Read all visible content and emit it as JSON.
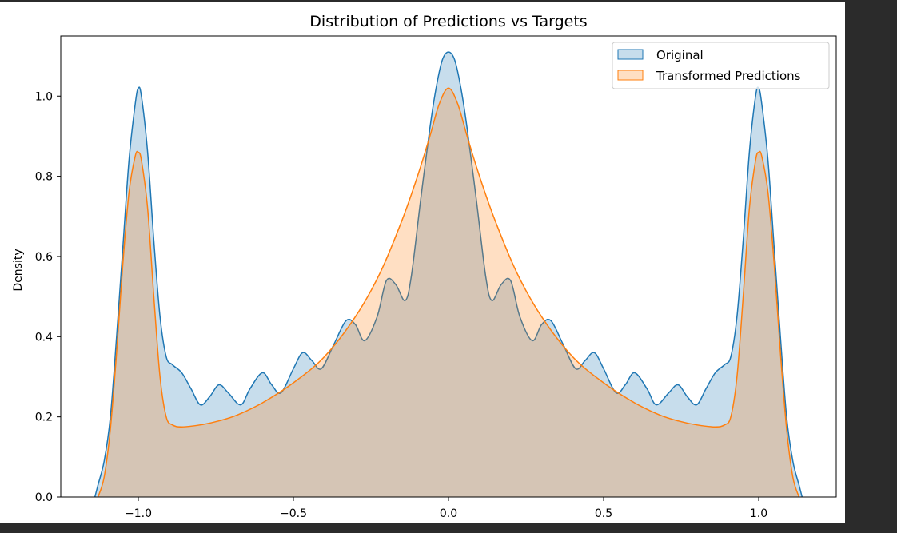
{
  "chart_data": {
    "type": "area",
    "title": "Distribution of Predictions vs Targets",
    "xlabel": "",
    "ylabel": "Density",
    "xlim": [
      -1.25,
      1.25
    ],
    "ylim": [
      0.0,
      1.15
    ],
    "xticks": [
      -1.0,
      -0.5,
      0.0,
      0.5,
      1.0
    ],
    "xtick_labels": [
      "−1.0",
      "−0.5",
      "0.0",
      "0.5",
      "1.0"
    ],
    "yticks": [
      0.0,
      0.2,
      0.4,
      0.6,
      0.8,
      1.0
    ],
    "ytick_labels": [
      "0.0",
      "0.2",
      "0.4",
      "0.6",
      "0.8",
      "1.0"
    ],
    "grid": false,
    "legend_position": "top-right",
    "series": [
      {
        "name": "Original",
        "color": "#1f77b4",
        "points": [
          [
            -1.14,
            0.0
          ],
          [
            -1.13,
            0.03
          ],
          [
            -1.11,
            0.09
          ],
          [
            -1.09,
            0.2
          ],
          [
            -1.07,
            0.4
          ],
          [
            -1.05,
            0.62
          ],
          [
            -1.03,
            0.84
          ],
          [
            -1.01,
            0.98
          ],
          [
            -1.0,
            1.02
          ],
          [
            -0.99,
            1.0
          ],
          [
            -0.97,
            0.86
          ],
          [
            -0.95,
            0.64
          ],
          [
            -0.93,
            0.45
          ],
          [
            -0.91,
            0.35
          ],
          [
            -0.89,
            0.33
          ],
          [
            -0.86,
            0.31
          ],
          [
            -0.83,
            0.27
          ],
          [
            -0.8,
            0.23
          ],
          [
            -0.77,
            0.25
          ],
          [
            -0.74,
            0.28
          ],
          [
            -0.71,
            0.26
          ],
          [
            -0.67,
            0.23
          ],
          [
            -0.64,
            0.27
          ],
          [
            -0.6,
            0.31
          ],
          [
            -0.57,
            0.28
          ],
          [
            -0.54,
            0.26
          ],
          [
            -0.5,
            0.32
          ],
          [
            -0.47,
            0.36
          ],
          [
            -0.44,
            0.34
          ],
          [
            -0.41,
            0.32
          ],
          [
            -0.37,
            0.38
          ],
          [
            -0.33,
            0.44
          ],
          [
            -0.3,
            0.43
          ],
          [
            -0.27,
            0.39
          ],
          [
            -0.23,
            0.45
          ],
          [
            -0.2,
            0.54
          ],
          [
            -0.17,
            0.53
          ],
          [
            -0.14,
            0.49
          ],
          [
            -0.12,
            0.55
          ],
          [
            -0.09,
            0.74
          ],
          [
            -0.06,
            0.92
          ],
          [
            -0.04,
            1.02
          ],
          [
            -0.02,
            1.09
          ],
          [
            0.0,
            1.11
          ],
          [
            0.02,
            1.09
          ],
          [
            0.04,
            1.02
          ],
          [
            0.06,
            0.92
          ],
          [
            0.09,
            0.74
          ],
          [
            0.12,
            0.55
          ],
          [
            0.14,
            0.49
          ],
          [
            0.17,
            0.53
          ],
          [
            0.2,
            0.54
          ],
          [
            0.23,
            0.45
          ],
          [
            0.27,
            0.39
          ],
          [
            0.3,
            0.43
          ],
          [
            0.33,
            0.44
          ],
          [
            0.37,
            0.38
          ],
          [
            0.41,
            0.32
          ],
          [
            0.44,
            0.34
          ],
          [
            0.47,
            0.36
          ],
          [
            0.5,
            0.32
          ],
          [
            0.54,
            0.26
          ],
          [
            0.57,
            0.28
          ],
          [
            0.6,
            0.31
          ],
          [
            0.64,
            0.27
          ],
          [
            0.67,
            0.23
          ],
          [
            0.71,
            0.26
          ],
          [
            0.74,
            0.28
          ],
          [
            0.77,
            0.25
          ],
          [
            0.8,
            0.23
          ],
          [
            0.83,
            0.27
          ],
          [
            0.86,
            0.31
          ],
          [
            0.89,
            0.33
          ],
          [
            0.91,
            0.35
          ],
          [
            0.93,
            0.45
          ],
          [
            0.95,
            0.64
          ],
          [
            0.97,
            0.86
          ],
          [
            0.99,
            1.0
          ],
          [
            1.0,
            1.02
          ],
          [
            1.01,
            0.98
          ],
          [
            1.03,
            0.84
          ],
          [
            1.05,
            0.62
          ],
          [
            1.07,
            0.4
          ],
          [
            1.09,
            0.2
          ],
          [
            1.11,
            0.09
          ],
          [
            1.13,
            0.03
          ],
          [
            1.14,
            0.0
          ]
        ]
      },
      {
        "name": "Transformed Predictions",
        "color": "#ff7f0e",
        "points": [
          [
            -1.13,
            0.0
          ],
          [
            -1.11,
            0.05
          ],
          [
            -1.09,
            0.17
          ],
          [
            -1.07,
            0.36
          ],
          [
            -1.05,
            0.58
          ],
          [
            -1.03,
            0.76
          ],
          [
            -1.01,
            0.85
          ],
          [
            -1.0,
            0.86
          ],
          [
            -0.99,
            0.84
          ],
          [
            -0.97,
            0.72
          ],
          [
            -0.95,
            0.5
          ],
          [
            -0.93,
            0.3
          ],
          [
            -0.91,
            0.2
          ],
          [
            -0.89,
            0.18
          ],
          [
            -0.86,
            0.175
          ],
          [
            -0.8,
            0.18
          ],
          [
            -0.74,
            0.19
          ],
          [
            -0.68,
            0.205
          ],
          [
            -0.6,
            0.235
          ],
          [
            -0.5,
            0.285
          ],
          [
            -0.4,
            0.35
          ],
          [
            -0.3,
            0.45
          ],
          [
            -0.22,
            0.56
          ],
          [
            -0.15,
            0.69
          ],
          [
            -0.1,
            0.8
          ],
          [
            -0.06,
            0.9
          ],
          [
            -0.03,
            0.98
          ],
          [
            0.0,
            1.02
          ],
          [
            0.03,
            0.98
          ],
          [
            0.06,
            0.9
          ],
          [
            0.1,
            0.8
          ],
          [
            0.15,
            0.69
          ],
          [
            0.22,
            0.56
          ],
          [
            0.3,
            0.45
          ],
          [
            0.4,
            0.35
          ],
          [
            0.5,
            0.285
          ],
          [
            0.6,
            0.235
          ],
          [
            0.68,
            0.205
          ],
          [
            0.74,
            0.19
          ],
          [
            0.8,
            0.18
          ],
          [
            0.86,
            0.175
          ],
          [
            0.89,
            0.18
          ],
          [
            0.91,
            0.2
          ],
          [
            0.93,
            0.3
          ],
          [
            0.95,
            0.5
          ],
          [
            0.97,
            0.72
          ],
          [
            0.99,
            0.84
          ],
          [
            1.0,
            0.86
          ],
          [
            1.01,
            0.85
          ],
          [
            1.03,
            0.76
          ],
          [
            1.05,
            0.58
          ],
          [
            1.07,
            0.36
          ],
          [
            1.09,
            0.17
          ],
          [
            1.11,
            0.05
          ],
          [
            1.13,
            0.0
          ]
        ]
      }
    ]
  }
}
